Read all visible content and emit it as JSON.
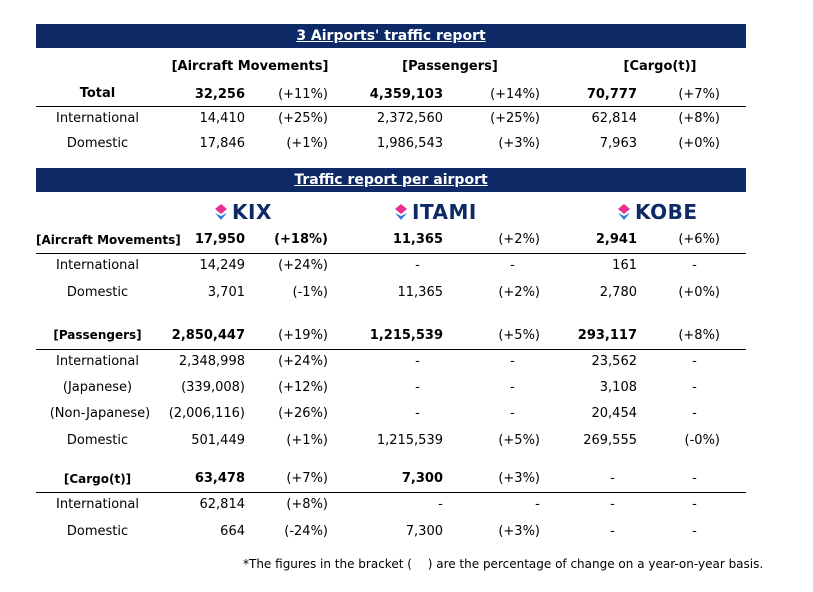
{
  "sections": {
    "summary_title": "3 Airports' traffic report",
    "airport_title": "Traffic report per airport"
  },
  "summary": {
    "headers": [
      "[Aircraft Movements]",
      "[Passengers]",
      "[Cargo(t)]"
    ],
    "rows": [
      {
        "label": "Total",
        "am": "32,256",
        "am_chg": "(+11%)",
        "px": "4,359,103",
        "px_chg": "(+14%)",
        "cg": "70,777",
        "cg_chg": "(+7%)"
      },
      {
        "label": "International",
        "am": "14,410",
        "am_chg": "(+25%)",
        "px": "2,372,560",
        "px_chg": "(+25%)",
        "cg": "62,814",
        "cg_chg": "(+8%)"
      },
      {
        "label": "Domestic",
        "am": "17,846",
        "am_chg": "(+1%)",
        "px": "1,986,543",
        "px_chg": "(+3%)",
        "cg": "7,963",
        "cg_chg": "(+0%)"
      }
    ]
  },
  "airports": [
    "KIX",
    "ITAMI",
    "KOBE"
  ],
  "brand_colors": {
    "navy": "#0e2a66",
    "pink": "#e8308c",
    "blue": "#2f7fd8"
  },
  "per_airport": {
    "aircraft": {
      "rows": [
        {
          "label": "[Aircraft Movements]",
          "kix": "17,950",
          "kix_chg": "(+18%)",
          "itm": "11,365",
          "itm_chg": "(+2%)",
          "kobe": "2,941",
          "kobe_chg": "(+6%)"
        },
        {
          "label": "International",
          "kix": "14,249",
          "kix_chg": "(+24%)",
          "itm": "-",
          "itm_chg": "-",
          "kobe": "161",
          "kobe_chg": "-"
        },
        {
          "label": "Domestic",
          "kix": "3,701",
          "kix_chg": "(-1%)",
          "itm": "11,365",
          "itm_chg": "(+2%)",
          "kobe": "2,780",
          "kobe_chg": "(+0%)"
        }
      ]
    },
    "passengers": {
      "rows": [
        {
          "label": "[Passengers]",
          "kix": "2,850,447",
          "kix_chg": "(+19%)",
          "itm": "1,215,539",
          "itm_chg": "(+5%)",
          "kobe": "293,117",
          "kobe_chg": "(+8%)"
        },
        {
          "label": "International",
          "kix": "2,348,998",
          "kix_chg": "(+24%)",
          "itm": "-",
          "itm_chg": "-",
          "kobe": "23,562",
          "kobe_chg": "-"
        },
        {
          "label": "(Japanese)",
          "kix": "(339,008)",
          "kix_chg": "(+12%)",
          "itm": "-",
          "itm_chg": "-",
          "kobe": "3,108",
          "kobe_chg": "-"
        },
        {
          "label": "(Non-Japanese)",
          "kix": "(2,006,116)",
          "kix_chg": "(+26%)",
          "itm": "-",
          "itm_chg": "-",
          "kobe": "20,454",
          "kobe_chg": "-"
        },
        {
          "label": "Domestic",
          "kix": "501,449",
          "kix_chg": "(+1%)",
          "itm": "1,215,539",
          "itm_chg": "(+5%)",
          "kobe": "269,555",
          "kobe_chg": "(-0%)"
        }
      ]
    },
    "cargo": {
      "rows": [
        {
          "label": "[Cargo(t)]",
          "kix": "63,478",
          "kix_chg": "(+7%)",
          "itm": "7,300",
          "itm_chg": "(+3%)",
          "kobe": "-",
          "kobe_chg": "-"
        },
        {
          "label": "International",
          "kix": "62,814",
          "kix_chg": "(+8%)",
          "itm": "-",
          "itm_chg": "-",
          "kobe": "-",
          "kobe_chg": "-"
        },
        {
          "label": "Domestic",
          "kix": "664",
          "kix_chg": "(-24%)",
          "itm": "7,300",
          "itm_chg": "(+3%)",
          "kobe": "-",
          "kobe_chg": "-"
        }
      ]
    }
  },
  "footnote": "*The figures in the bracket (　 ) are the percentage of change on a year-on-year basis."
}
